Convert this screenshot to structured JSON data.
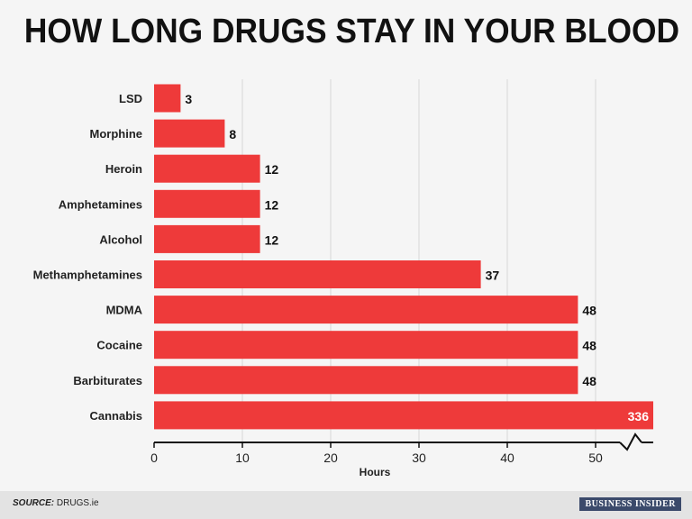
{
  "title": "HOW LONG DRUGS STAY IN YOUR BLOOD",
  "footer": {
    "source_label": "SOURCE:",
    "source_value": "DRUGS.ie",
    "brand": "BUSINESS INSIDER"
  },
  "chart_data": {
    "type": "bar",
    "orientation": "horizontal",
    "title": "HOW LONG DRUGS STAY IN YOUR BLOOD",
    "xlabel": "Hours",
    "ylabel": "",
    "categories": [
      "LSD",
      "Morphine",
      "Heroin",
      "Amphetamines",
      "Alcohol",
      "Methamphetamines",
      "MDMA",
      "Cocaine",
      "Barbiturates",
      "Cannabis"
    ],
    "values": [
      3,
      8,
      12,
      12,
      12,
      37,
      48,
      48,
      48,
      336
    ],
    "xticks": [
      "0",
      "10",
      "20",
      "30",
      "40",
      "50"
    ],
    "xlim": [
      0,
      56
    ],
    "axis_break": true,
    "bar_color": "#ee3a3a",
    "grid": true
  }
}
